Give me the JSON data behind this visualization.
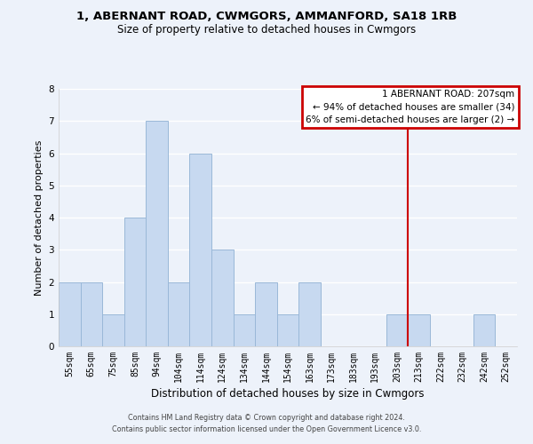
{
  "title": "1, ABERNANT ROAD, CWMGORS, AMMANFORD, SA18 1RB",
  "subtitle": "Size of property relative to detached houses in Cwmgors",
  "xlabel": "Distribution of detached houses by size in Cwmgors",
  "ylabel": "Number of detached properties",
  "bar_labels": [
    "55sqm",
    "65sqm",
    "75sqm",
    "85sqm",
    "94sqm",
    "104sqm",
    "114sqm",
    "124sqm",
    "134sqm",
    "144sqm",
    "154sqm",
    "163sqm",
    "173sqm",
    "183sqm",
    "193sqm",
    "203sqm",
    "213sqm",
    "222sqm",
    "232sqm",
    "242sqm",
    "252sqm"
  ],
  "bar_heights": [
    2,
    2,
    1,
    4,
    7,
    2,
    6,
    3,
    1,
    2,
    1,
    2,
    0,
    0,
    0,
    1,
    1,
    0,
    0,
    1,
    0
  ],
  "bar_color": "#c7d9f0",
  "bar_edge_color": "#9ab8d8",
  "ylim": [
    0,
    8
  ],
  "yticks": [
    0,
    1,
    2,
    3,
    4,
    5,
    6,
    7,
    8
  ],
  "property_line_x": 15.5,
  "property_line_color": "#cc0000",
  "annotation_title": "1 ABERNANT ROAD: 207sqm",
  "annotation_line1": "← 94% of detached houses are smaller (34)",
  "annotation_line2": "6% of semi-detached houses are larger (2) →",
  "annotation_box_color": "#cc0000",
  "footer_line1": "Contains HM Land Registry data © Crown copyright and database right 2024.",
  "footer_line2": "Contains public sector information licensed under the Open Government Licence v3.0.",
  "background_color": "#edf2fa",
  "grid_color": "#ffffff",
  "title_fontsize": 9.5,
  "subtitle_fontsize": 8.5,
  "tick_fontsize": 7.0,
  "ylabel_fontsize": 8.0,
  "xlabel_fontsize": 8.5,
  "annot_fontsize": 7.5,
  "footer_fontsize": 5.8
}
